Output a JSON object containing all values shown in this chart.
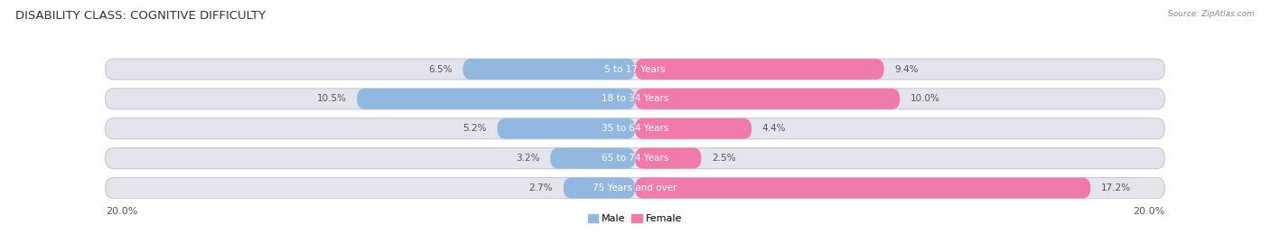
{
  "title": "DISABILITY CLASS: COGNITIVE DIFFICULTY",
  "source": "Source: ZipAtlas.com",
  "categories": [
    "5 to 17 Years",
    "18 to 34 Years",
    "35 to 64 Years",
    "65 to 74 Years",
    "75 Years and over"
  ],
  "male_values": [
    6.5,
    10.5,
    5.2,
    3.2,
    2.7
  ],
  "female_values": [
    9.4,
    10.0,
    4.4,
    2.5,
    17.2
  ],
  "male_color": "#92b8e0",
  "female_color": "#f07aaa",
  "bar_bg_color": "#e4e4ec",
  "bar_border_color": "#c8c8d8",
  "max_value": 20.0,
  "title_fontsize": 9.5,
  "label_fontsize": 7.5,
  "bar_label_fontsize": 7.5,
  "axis_label_fontsize": 8,
  "legend_fontsize": 8,
  "background_color": "#ffffff"
}
